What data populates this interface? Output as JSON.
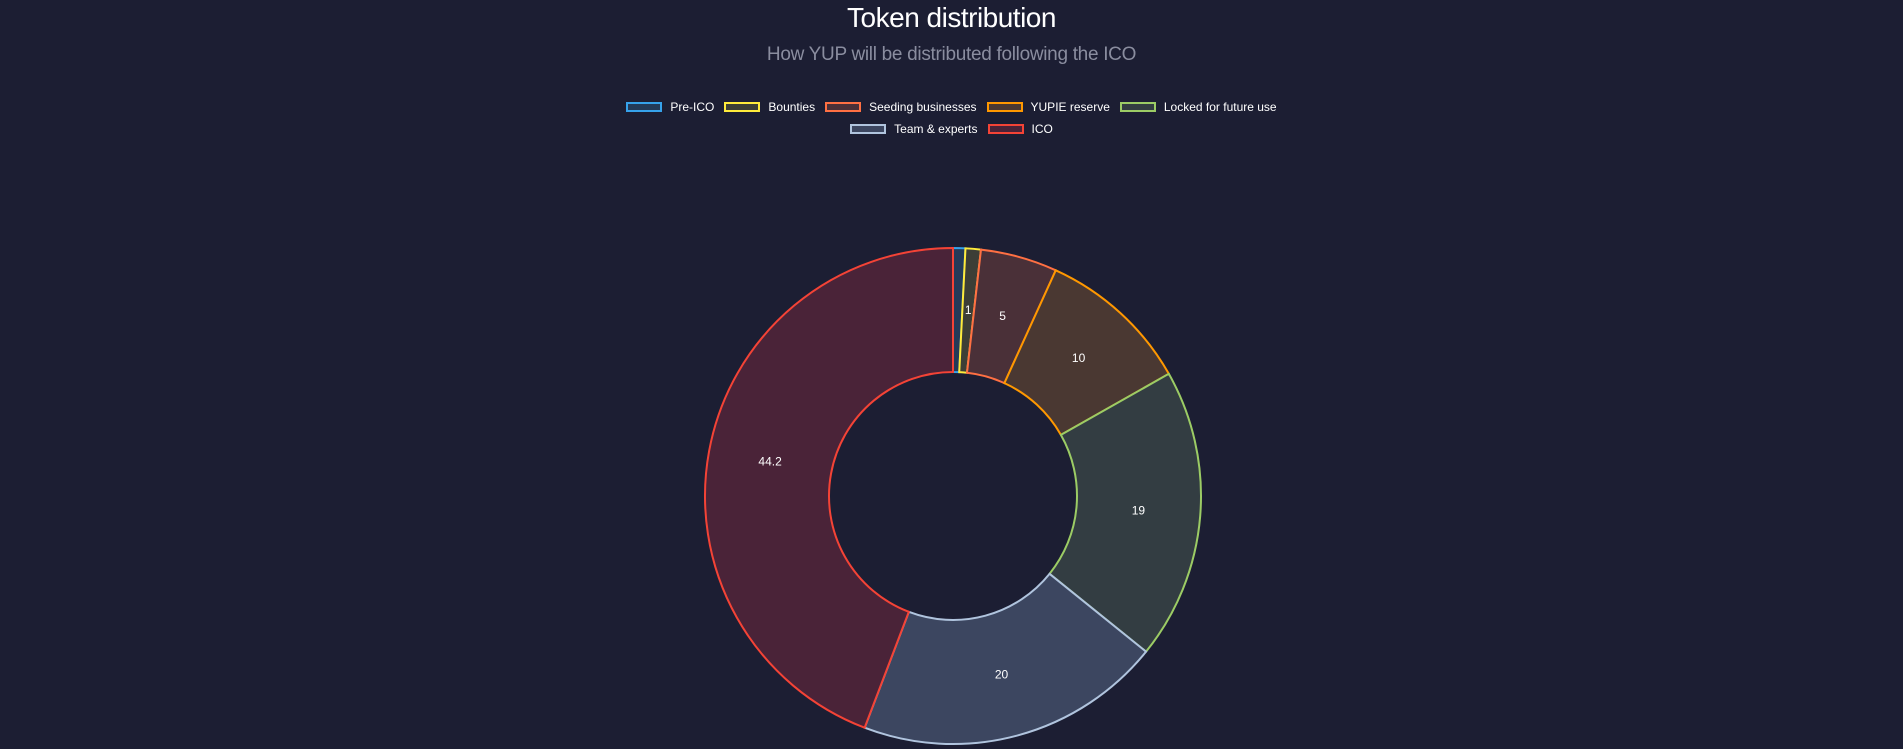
{
  "title": "Token distribution",
  "subtitle": "How YUP will be distributed following the ICO",
  "chart_data": {
    "type": "pie",
    "donut": true,
    "legend_position": "top",
    "labels": [
      "Pre-ICO",
      "Bounties",
      "Seeding businesses",
      "YUPIE reserve",
      "Locked for future use",
      "Team & experts",
      "ICO"
    ],
    "values": [
      0.8,
      1,
      5,
      10,
      19,
      20,
      44.2
    ],
    "data_labels": [
      "",
      "1",
      "5",
      "10",
      "19",
      "20",
      "44.2"
    ],
    "border_colors": [
      "#36a2eb",
      "#ffeb3b",
      "#ff7043",
      "#ff9800",
      "#9ccc65",
      "#b0c4de",
      "#f44336"
    ],
    "fill_colors": [
      "#233a58",
      "#3c3e36",
      "#4a3038",
      "#4a3832",
      "#333d42",
      "#3c4660",
      "#4a2338"
    ]
  }
}
